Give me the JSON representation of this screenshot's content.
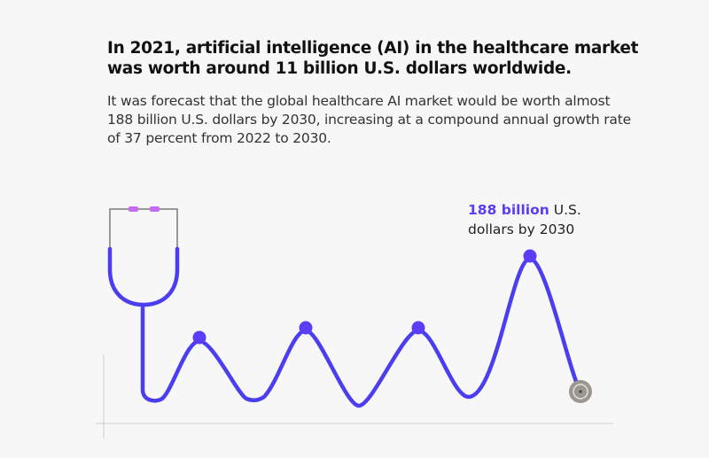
{
  "title": "In 2021, artificial intelligence (AI) in the healthcare market was worth around 11 billion U.S. dollars worldwide.",
  "subtitle": "It was forecast that the global healthcare AI market would be worth almost 188 billion U.S. dollars by 2030, increasing at a compound annual growth rate of 37 percent from 2022 to 2030.",
  "annotation": {
    "highlight": "188 billion",
    "rest_line1": " U.S.",
    "line2": "dollars by 2030"
  },
  "colors": {
    "tube": "#4b3df0",
    "marker": "#5b3df5",
    "earpiece": "#c86cf5",
    "highlight": "#5b3df5"
  }
}
